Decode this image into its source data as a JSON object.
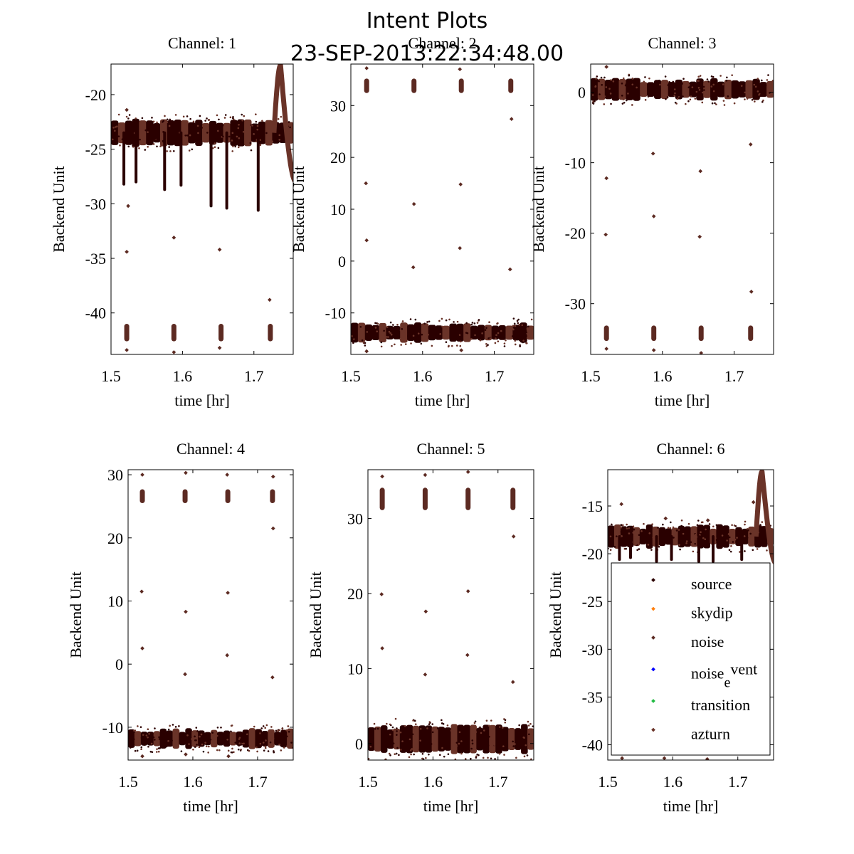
{
  "figure": {
    "title": "Intent Plots",
    "subtitle": "23-SEP-2013:22:34:48.00"
  },
  "colors": {
    "source": "#2a0000",
    "skydip": "#ff7f0e",
    "noise": "#5c2a22",
    "noise_event": "#0000ff",
    "transition": "#22bb44",
    "azturn": "#6a3328"
  },
  "legend": {
    "items": [
      {
        "key": "source",
        "label": "source"
      },
      {
        "key": "skydip",
        "label": "skydip"
      },
      {
        "key": "noise",
        "label": "noise"
      },
      {
        "key": "noise_event",
        "label_main": "noise",
        "label_sub": "e",
        "label_sup": "vent"
      },
      {
        "key": "transition",
        "label": "transition"
      },
      {
        "key": "azturn",
        "label": "azturn"
      }
    ]
  },
  "chart_data": [
    {
      "type": "scatter",
      "title": "Channel: 1",
      "xlabel": "time [hr]",
      "ylabel": "Backend Unit",
      "xlim": [
        1.5,
        1.755
      ],
      "ylim": [
        -43.8,
        -17.2
      ],
      "xticks": [
        1.5,
        1.6,
        1.7
      ],
      "xtick_labels": [
        "1.5",
        "1.6",
        "1.7"
      ],
      "yticks": [
        -20,
        -25,
        -30,
        -35,
        -40
      ],
      "ytick_labels": [
        "-20",
        "-25",
        "-30",
        "-35",
        "-40"
      ],
      "baseline": -23.5,
      "band": 1.0,
      "cluster_level": -41.8,
      "cluster_spread": 0.8,
      "dips": [
        {
          "x": 1.518,
          "y": -28.2
        },
        {
          "x": 1.535,
          "y": -28.0
        },
        {
          "x": 1.575,
          "y": -28.7
        },
        {
          "x": 1.598,
          "y": -28.3
        },
        {
          "x": 1.64,
          "y": -30.2
        },
        {
          "x": 1.662,
          "y": -30.4
        },
        {
          "x": 1.706,
          "y": -30.6
        }
      ],
      "bump": {
        "x0": 1.728,
        "peak": -17.3,
        "end": -28.0
      },
      "outliers": [
        {
          "x": 1.522,
          "y": -21.4
        },
        {
          "x": 1.524,
          "y": -30.2
        },
        {
          "x": 1.522,
          "y": -34.4
        },
        {
          "x": 1.588,
          "y": -33.1
        },
        {
          "x": 1.652,
          "y": -34.2
        },
        {
          "x": 1.722,
          "y": -38.8
        },
        {
          "x": 1.522,
          "y": -43.4
        },
        {
          "x": 1.588,
          "y": -43.6
        },
        {
          "x": 1.652,
          "y": -43.2
        }
      ]
    },
    {
      "type": "scatter",
      "title": "Channel: 2",
      "xlabel": "time [hr]",
      "ylabel": "Backend Unit",
      "xlim": [
        1.5,
        1.755
      ],
      "ylim": [
        -18.0,
        38.0
      ],
      "xticks": [
        1.5,
        1.6,
        1.7
      ],
      "xtick_labels": [
        "1.5",
        "1.6",
        "1.7"
      ],
      "yticks": [
        30,
        20,
        10,
        0,
        -10
      ],
      "ytick_labels": [
        "30",
        "20",
        "10",
        "0",
        "-10"
      ],
      "baseline": -13.8,
      "band": 1.6,
      "cluster_level": 33.8,
      "cluster_spread": 1.4,
      "dips": [],
      "bump": null,
      "outliers": [
        {
          "x": 1.521,
          "y": 15.0
        },
        {
          "x": 1.522,
          "y": 4.0
        },
        {
          "x": 1.588,
          "y": 11.0
        },
        {
          "x": 1.587,
          "y": -1.2
        },
        {
          "x": 1.653,
          "y": 14.8
        },
        {
          "x": 1.652,
          "y": 2.5
        },
        {
          "x": 1.724,
          "y": 27.4
        },
        {
          "x": 1.722,
          "y": -1.6
        },
        {
          "x": 1.522,
          "y": 37.2
        },
        {
          "x": 1.652,
          "y": 37.0
        },
        {
          "x": 1.522,
          "y": -17.4
        },
        {
          "x": 1.654,
          "y": -17.2
        }
      ]
    },
    {
      "type": "scatter",
      "title": "Channel: 3",
      "xlabel": "time [hr]",
      "ylabel": "Backend Unit",
      "xlim": [
        1.5,
        1.755
      ],
      "ylim": [
        -37.2,
        4.0
      ],
      "xticks": [
        1.5,
        1.6,
        1.7
      ],
      "xtick_labels": [
        "1.5",
        "1.6",
        "1.7"
      ],
      "yticks": [
        0,
        -10,
        -20,
        -30
      ],
      "ytick_labels": [
        "0",
        "-10",
        "-20",
        "-30"
      ],
      "baseline": 0.4,
      "band": 1.3,
      "cluster_level": -34.2,
      "cluster_spread": 1.1,
      "dips": [],
      "bump": null,
      "outliers": [
        {
          "x": 1.522,
          "y": -12.2
        },
        {
          "x": 1.521,
          "y": -20.2
        },
        {
          "x": 1.587,
          "y": -8.7
        },
        {
          "x": 1.588,
          "y": -17.6
        },
        {
          "x": 1.653,
          "y": -11.2
        },
        {
          "x": 1.652,
          "y": -20.5
        },
        {
          "x": 1.723,
          "y": -7.4
        },
        {
          "x": 1.724,
          "y": -28.3
        },
        {
          "x": 1.522,
          "y": 3.6
        },
        {
          "x": 1.522,
          "y": -36.4
        },
        {
          "x": 1.588,
          "y": -36.6
        },
        {
          "x": 1.654,
          "y": -37.0
        }
      ]
    },
    {
      "type": "scatter",
      "title": "Channel: 4",
      "xlabel": "time [hr]",
      "ylabel": "Backend Unit",
      "xlim": [
        1.5,
        1.755
      ],
      "ylim": [
        -15.2,
        30.8
      ],
      "xticks": [
        1.5,
        1.6,
        1.7
      ],
      "xtick_labels": [
        "1.5",
        "1.6",
        "1.7"
      ],
      "yticks": [
        30,
        20,
        10,
        0,
        -10
      ],
      "ytick_labels": [
        "30",
        "20",
        "10",
        "0",
        "-10"
      ],
      "baseline": -11.8,
      "band": 1.3,
      "cluster_level": 26.6,
      "cluster_spread": 1.1,
      "dips": [],
      "bump": null,
      "outliers": [
        {
          "x": 1.521,
          "y": 11.5
        },
        {
          "x": 1.522,
          "y": 2.5
        },
        {
          "x": 1.589,
          "y": 8.3
        },
        {
          "x": 1.588,
          "y": -1.6
        },
        {
          "x": 1.654,
          "y": 11.3
        },
        {
          "x": 1.653,
          "y": 1.4
        },
        {
          "x": 1.724,
          "y": 21.5
        },
        {
          "x": 1.723,
          "y": -2.1
        },
        {
          "x": 1.522,
          "y": 30.0
        },
        {
          "x": 1.589,
          "y": 30.3
        },
        {
          "x": 1.653,
          "y": 30.0
        },
        {
          "x": 1.724,
          "y": 29.7
        },
        {
          "x": 1.522,
          "y": -14.6
        },
        {
          "x": 1.589,
          "y": -14.3
        },
        {
          "x": 1.655,
          "y": -14.6
        }
      ]
    },
    {
      "type": "scatter",
      "title": "Channel: 5",
      "xlabel": "time [hr]",
      "ylabel": "Backend Unit",
      "xlim": [
        1.5,
        1.755
      ],
      "ylim": [
        -2.2,
        36.5
      ],
      "xticks": [
        1.5,
        1.6,
        1.7
      ],
      "xtick_labels": [
        "1.5",
        "1.6",
        "1.7"
      ],
      "yticks": [
        30,
        20,
        10,
        0
      ],
      "ytick_labels": [
        "30",
        "20",
        "10",
        "0"
      ],
      "baseline": 0.6,
      "band": 1.6,
      "cluster_level": 32.6,
      "cluster_spread": 1.5,
      "dips": [],
      "bump": null,
      "outliers": [
        {
          "x": 1.521,
          "y": 19.9
        },
        {
          "x": 1.522,
          "y": 12.7
        },
        {
          "x": 1.589,
          "y": 17.6
        },
        {
          "x": 1.588,
          "y": 9.2
        },
        {
          "x": 1.654,
          "y": 20.3
        },
        {
          "x": 1.653,
          "y": 11.8
        },
        {
          "x": 1.724,
          "y": 27.6
        },
        {
          "x": 1.723,
          "y": 8.2
        },
        {
          "x": 1.522,
          "y": 35.6
        },
        {
          "x": 1.588,
          "y": 35.8
        },
        {
          "x": 1.654,
          "y": 36.2
        }
      ]
    },
    {
      "type": "scatter",
      "title": "Channel: 6",
      "xlabel": "time [hr]",
      "ylabel": "Backend Unit",
      "xlim": [
        1.5,
        1.755
      ],
      "ylim": [
        -41.6,
        -11.2
      ],
      "xticks": [
        1.5,
        1.6,
        1.7
      ],
      "xtick_labels": [
        "1.5",
        "1.6",
        "1.7"
      ],
      "yticks": [
        -15,
        -20,
        -25,
        -30,
        -35,
        -40
      ],
      "ytick_labels": [
        "-15",
        "-20",
        "-25",
        "-30",
        "-35",
        "-40"
      ],
      "baseline": -18.2,
      "band": 1.0,
      "cluster_level": null,
      "cluster_spread": 0,
      "dips": [
        {
          "x": 1.518,
          "y": -20.6
        },
        {
          "x": 1.535,
          "y": -20.4
        },
        {
          "x": 1.575,
          "y": -20.8
        },
        {
          "x": 1.598,
          "y": -20.6
        },
        {
          "x": 1.64,
          "y": -20.8
        },
        {
          "x": 1.662,
          "y": -20.8
        },
        {
          "x": 1.706,
          "y": -20.6
        }
      ],
      "bump": {
        "x0": 1.728,
        "peak": -11.4,
        "end": -21.0
      },
      "outliers": [
        {
          "x": 1.521,
          "y": -14.8
        },
        {
          "x": 1.589,
          "y": -16.3
        },
        {
          "x": 1.654,
          "y": -16.5
        },
        {
          "x": 1.724,
          "y": -14.6
        },
        {
          "x": 1.522,
          "y": -41.4
        },
        {
          "x": 1.587,
          "y": -41.4
        },
        {
          "x": 1.653,
          "y": -41.5
        }
      ]
    }
  ]
}
